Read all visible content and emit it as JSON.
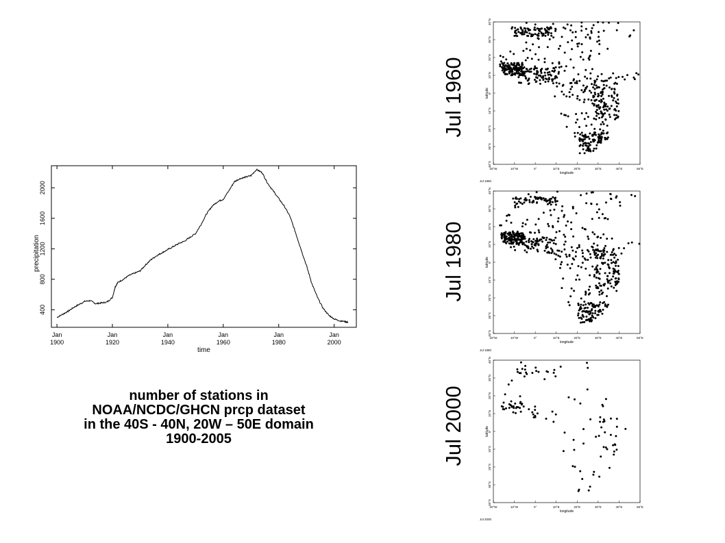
{
  "caption": {
    "lines": [
      "number of stations in",
      "NOAA/NCDC/GHCN prcp dataset",
      "in the 40S - 40N, 20W – 50E domain",
      "1900-2005"
    ]
  },
  "chart_data": [
    {
      "type": "line",
      "xlabel": "time",
      "ylabel": "precipitation",
      "xlim": [
        1898,
        2008
      ],
      "ylim": [
        170,
        2290
      ],
      "x_ticks": [
        {
          "value": 1900,
          "label_month": "Jan",
          "label_year": "1900"
        },
        {
          "value": 1920,
          "label_month": "Jan",
          "label_year": "1920"
        },
        {
          "value": 1940,
          "label_month": "Jan",
          "label_year": "1940"
        },
        {
          "value": 1960,
          "label_month": "Jan",
          "label_year": "1960"
        },
        {
          "value": 1980,
          "label_month": "Jan",
          "label_year": "1980"
        },
        {
          "value": 2000,
          "label_month": "Jan",
          "label_year": "2000"
        }
      ],
      "y_ticks": [
        {
          "value": 400,
          "label": "400"
        },
        {
          "value": 800,
          "label": "800"
        },
        {
          "value": 1200,
          "label": "1200"
        },
        {
          "value": 1600,
          "label": "1600"
        },
        {
          "value": 2000,
          "label": "2000"
        }
      ],
      "grid": false,
      "series": [
        {
          "color": "#000000",
          "x": [
            1900,
            1902,
            1904,
            1906,
            1908,
            1910,
            1912,
            1914,
            1916,
            1918,
            1920,
            1921,
            1922,
            1924,
            1926,
            1928,
            1930,
            1932,
            1934,
            1936,
            1938,
            1940,
            1942,
            1944,
            1946,
            1948,
            1950,
            1952,
            1954,
            1956,
            1958,
            1960,
            1962,
            1964,
            1966,
            1968,
            1970,
            1972,
            1974,
            1976,
            1978,
            1980,
            1982,
            1984,
            1986,
            1988,
            1990,
            1992,
            1994,
            1996,
            1998,
            2000,
            2002,
            2004,
            2005
          ],
          "y": [
            300,
            340,
            380,
            430,
            470,
            510,
            520,
            480,
            490,
            500,
            560,
            700,
            760,
            800,
            850,
            880,
            910,
            990,
            1060,
            1110,
            1150,
            1190,
            1230,
            1270,
            1300,
            1350,
            1400,
            1520,
            1660,
            1760,
            1820,
            1850,
            1960,
            2080,
            2120,
            2140,
            2160,
            2240,
            2200,
            2060,
            1960,
            1860,
            1760,
            1630,
            1420,
            1200,
            980,
            740,
            560,
            420,
            330,
            280,
            255,
            245,
            235
          ]
        }
      ]
    },
    {
      "type": "scatter",
      "title": "Jul 1960",
      "footer": "Jul 1960",
      "xlabel": "longitude",
      "ylabel": "latitude",
      "xlim": [
        -20,
        50
      ],
      "ylim": [
        -40,
        40
      ],
      "x_tick_labels": [
        "20°W",
        "10°W",
        "0°",
        "10°E",
        "20°E",
        "30°E",
        "40°E",
        "50°E"
      ],
      "y_tick_labels": [
        "40°S",
        "30°S",
        "20°S",
        "10°S",
        "0°",
        "10°N",
        "20°N",
        "30°N",
        "40°N"
      ],
      "station_level": 1.0
    },
    {
      "type": "scatter",
      "title": "Jul 1980",
      "footer": "Jul 1980",
      "xlabel": "longitude",
      "ylabel": "latitude",
      "xlim": [
        -20,
        50
      ],
      "ylim": [
        -40,
        40
      ],
      "x_tick_labels": [
        "20°W",
        "10°W",
        "0°",
        "10°E",
        "20°E",
        "30°E",
        "40°E",
        "50°E"
      ],
      "y_tick_labels": [
        "40°S",
        "30°S",
        "20°S",
        "10°S",
        "0°",
        "10°N",
        "20°N",
        "30°N",
        "40°N"
      ],
      "station_level": 0.95
    },
    {
      "type": "scatter",
      "title": "Jul 2000",
      "footer": "Jul 2000",
      "xlabel": "longitude",
      "ylabel": "latitude",
      "xlim": [
        -20,
        50
      ],
      "ylim": [
        -40,
        40
      ],
      "x_tick_labels": [
        "20°W",
        "10°W",
        "0°",
        "10°E",
        "20°E",
        "30°E",
        "40°E",
        "50°E"
      ],
      "y_tick_labels": [
        "40°S",
        "30°S",
        "20°S",
        "10°S",
        "0°",
        "10°N",
        "20°N",
        "30°N",
        "40°N"
      ],
      "station_level": 0.17
    }
  ]
}
